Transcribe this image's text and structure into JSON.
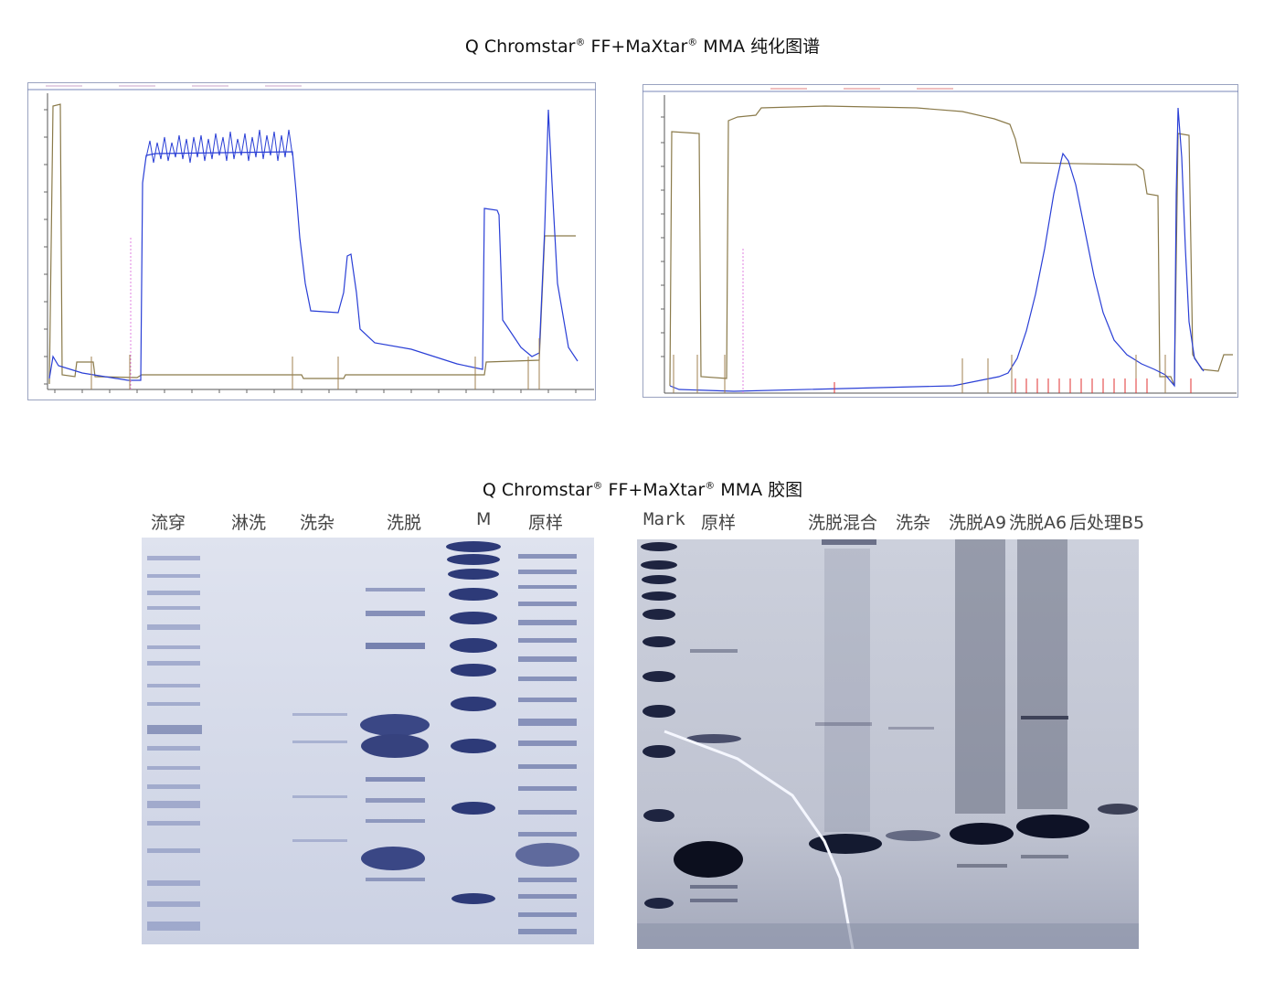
{
  "section1": {
    "title_pre": "Q Chromstar",
    "title_mid": " FF+MaXtar",
    "title_post": " MMA 纯化图谱",
    "reg": "®"
  },
  "section2": {
    "title_pre": "Q Chromstar",
    "title_mid": " FF+MaXtar",
    "title_post": " MMA 胶图",
    "reg": "®"
  },
  "gel_left": {
    "lanes": [
      "流穿",
      "淋洗",
      "洗杂",
      "洗脱",
      "M",
      "原样"
    ]
  },
  "gel_right": {
    "lanes": [
      "Mark",
      "原样",
      "洗脱混合",
      "洗杂",
      "洗脱A9",
      "洗脱A6",
      "后处理B5"
    ]
  },
  "colors": {
    "uv_trace": "#2a3fd6",
    "conductivity_trace": "#8a7a4a",
    "fraction_marks": "#e03030",
    "gel_bg": "#d5dae8",
    "gel_band": "#2d3a78"
  }
}
